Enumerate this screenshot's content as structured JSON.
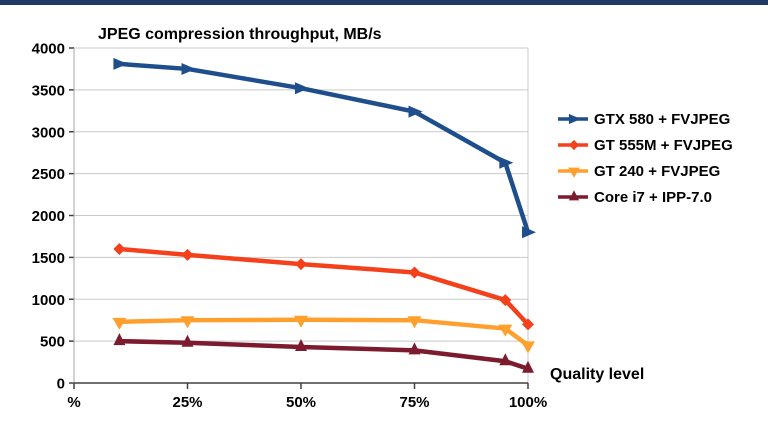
{
  "page": {
    "accent_bar_color": "#1F3864",
    "background_color": "#FFFFFF"
  },
  "chart_data": {
    "type": "line",
    "title": "JPEG compression throughput, MB/s",
    "x_axis_label": "Quality level",
    "ylabel": "",
    "xlim": [
      0,
      100
    ],
    "ylim": [
      0,
      4000
    ],
    "grid": "horizontal",
    "legend_position": "right",
    "x": [
      10,
      25,
      50,
      75,
      95,
      100
    ],
    "x_ticks": [
      {
        "value": 0,
        "label": "%"
      },
      {
        "value": 25,
        "label": "25%"
      },
      {
        "value": 50,
        "label": "50%"
      },
      {
        "value": 75,
        "label": "75%"
      },
      {
        "value": 100,
        "label": "100%"
      }
    ],
    "y_ticks": [
      0,
      500,
      1000,
      1500,
      2000,
      2500,
      3000,
      3500,
      4000
    ],
    "series": [
      {
        "name": "GTX 580 + FVJPEG",
        "color": "#1F4E8C",
        "marker": "triangle-right",
        "values": [
          3810,
          3750,
          3520,
          3240,
          2630,
          1800
        ]
      },
      {
        "name": "GT 555M + FVJPEG",
        "color": "#F4411C",
        "marker": "diamond",
        "values": [
          1600,
          1530,
          1420,
          1320,
          990,
          700
        ]
      },
      {
        "name": "GT 240 + FVJPEG",
        "color": "#FFA02E",
        "marker": "triangle-down",
        "values": [
          730,
          750,
          755,
          750,
          650,
          450
        ]
      },
      {
        "name": "Core i7 + IPP-7.0",
        "color": "#7C1A2E",
        "marker": "triangle-up",
        "values": [
          500,
          480,
          430,
          390,
          260,
          170
        ]
      }
    ],
    "style": {
      "gridline_color": "#C9C9C9",
      "axis_color": "#404040",
      "border_color": "#A6A6A6",
      "text_color": "#000000"
    }
  }
}
